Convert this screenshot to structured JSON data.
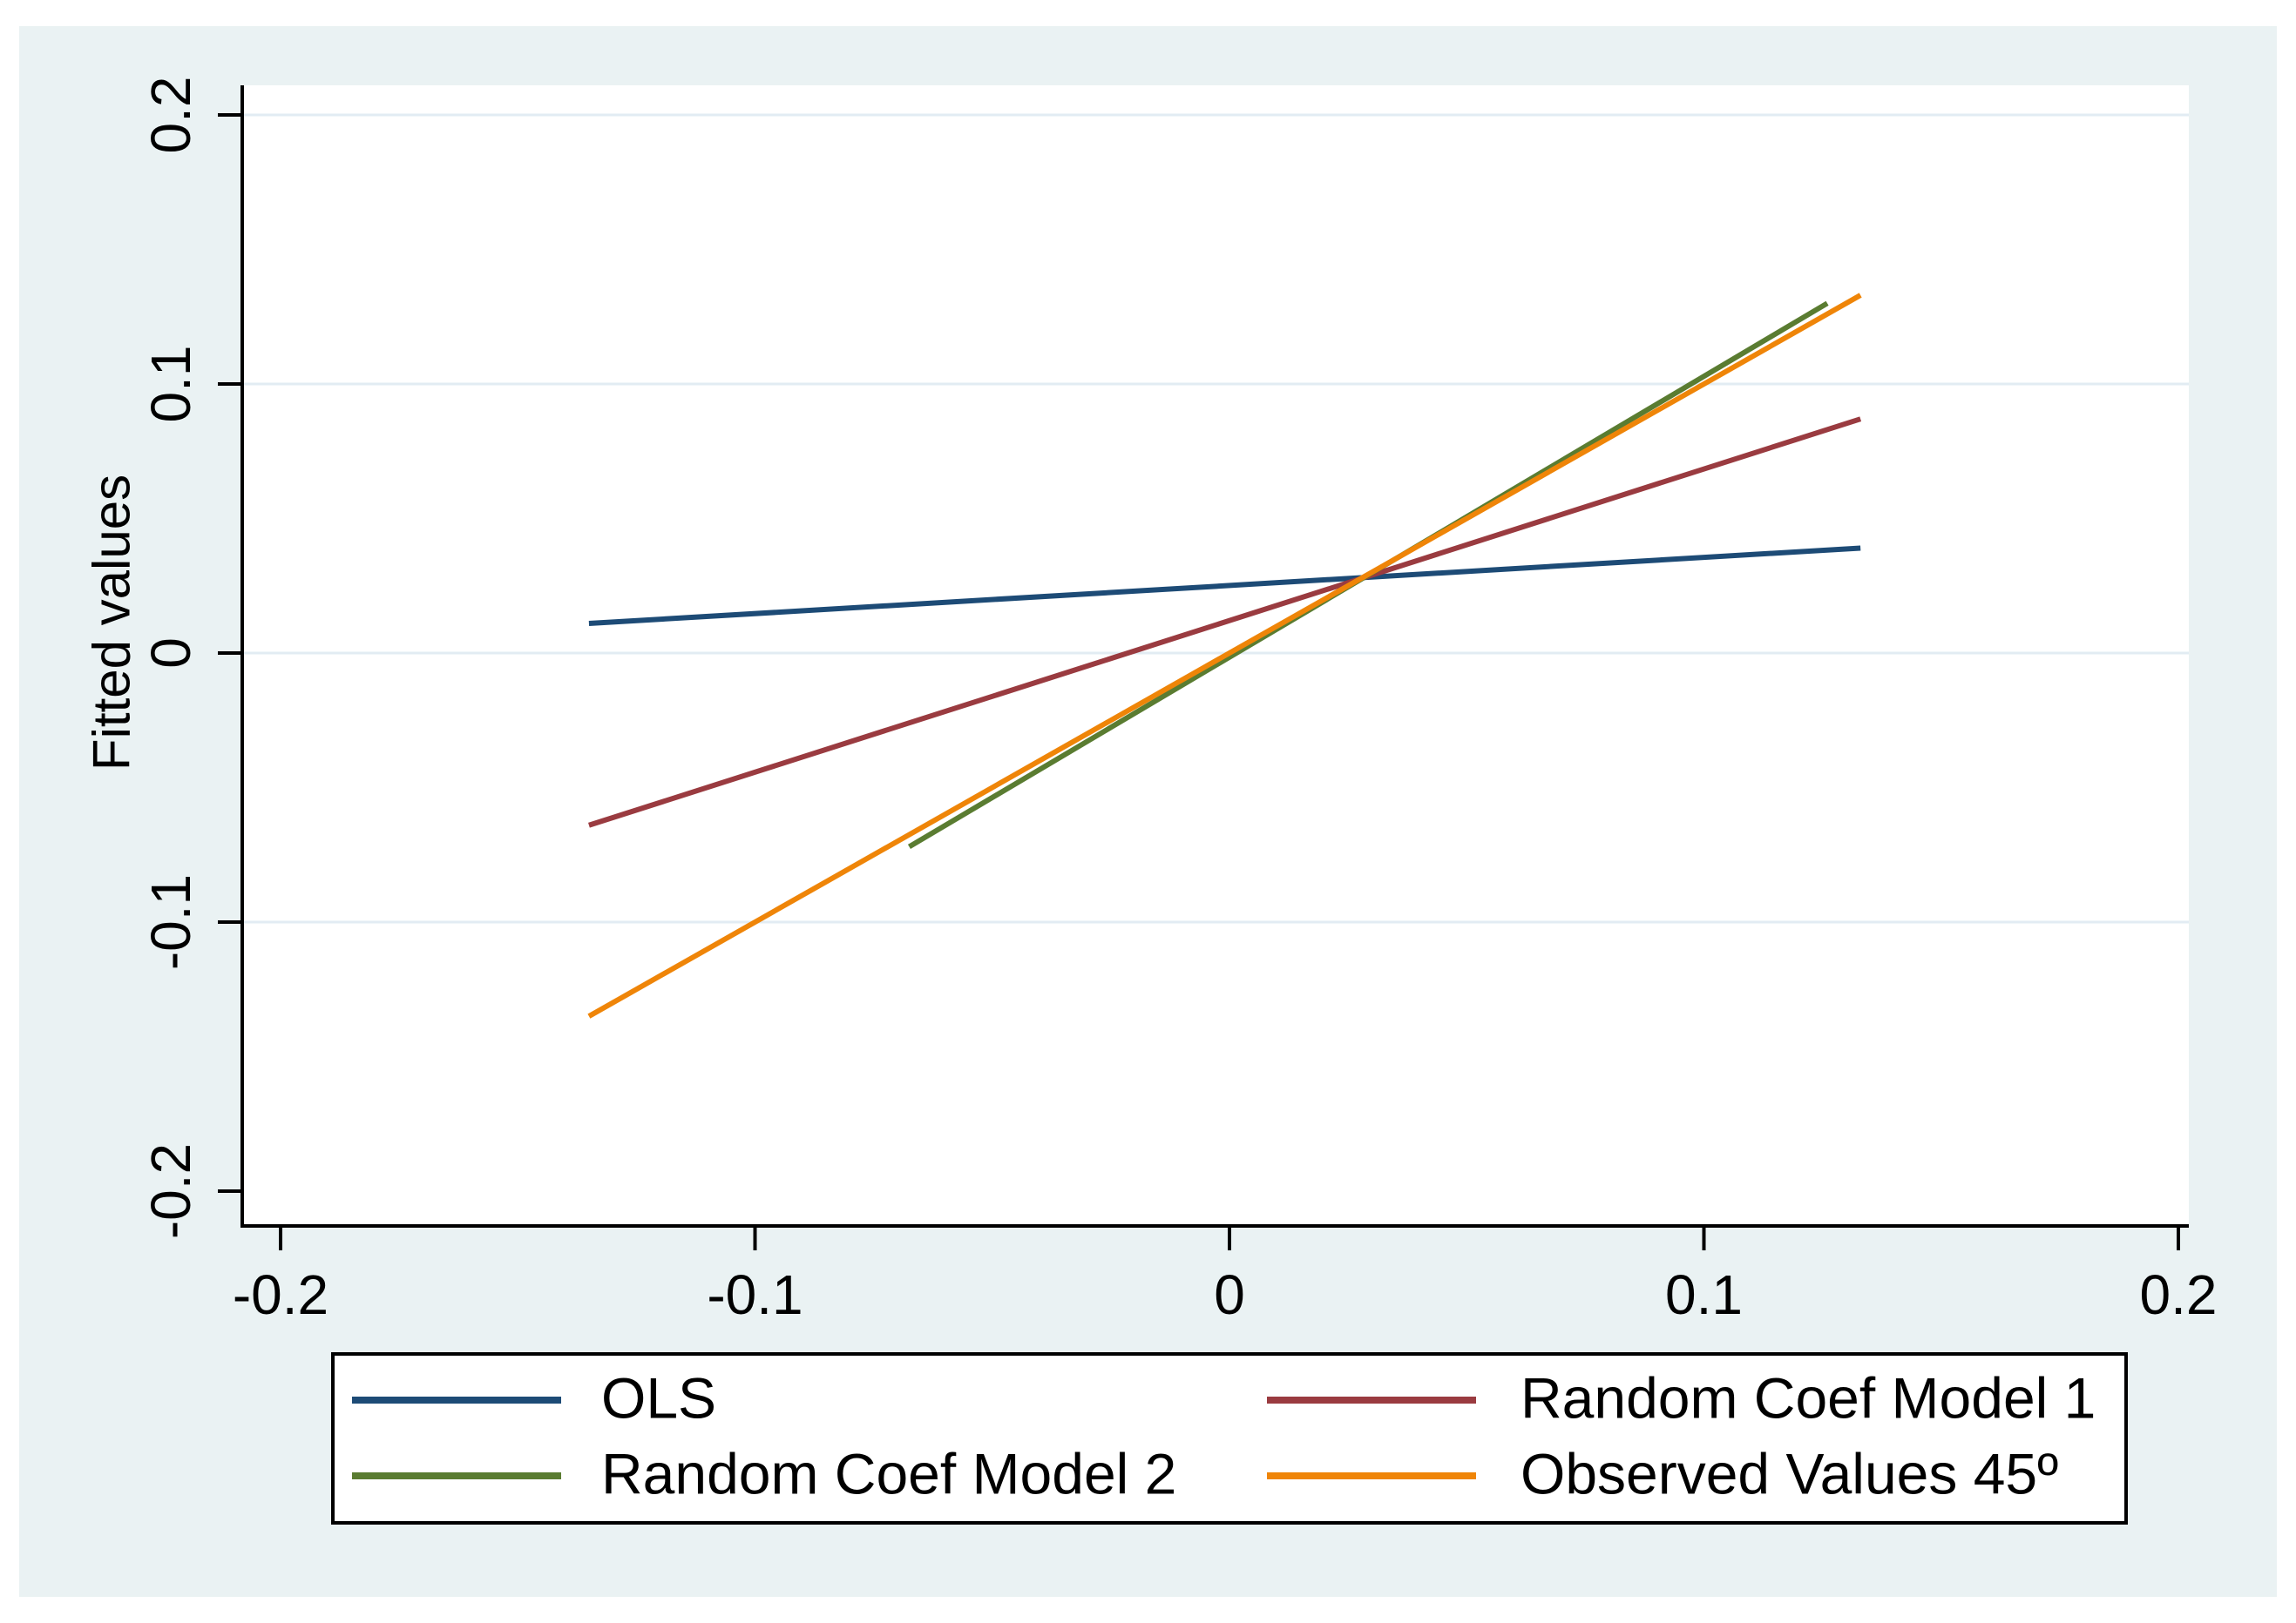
{
  "figure": {
    "page_background": "#ffffff",
    "panel_background": "#eaf2f3",
    "plot_background": "#ffffff",
    "gridline_color": "#e2ecf3",
    "axis_color": "#000000"
  },
  "chart_data": {
    "type": "line",
    "title": "",
    "xlabel": "",
    "ylabel": "Fitted values",
    "xlim": [
      -0.208,
      0.202
    ],
    "ylim": [
      -0.213,
      0.211
    ],
    "grid": "horizontal",
    "x_ticks": [
      {
        "value": -0.2,
        "label": "-0.2"
      },
      {
        "value": -0.1,
        "label": "-0.1"
      },
      {
        "value": 0,
        "label": "0"
      },
      {
        "value": 0.1,
        "label": "0.1"
      },
      {
        "value": 0.2,
        "label": "0.2"
      }
    ],
    "y_ticks": [
      {
        "value": 0.2,
        "label": "0.2",
        "grid": true
      },
      {
        "value": 0.1,
        "label": "0.1",
        "grid": true
      },
      {
        "value": 0,
        "label": "0",
        "grid": true
      },
      {
        "value": -0.1,
        "label": "-0.1",
        "grid": true
      },
      {
        "value": -0.2,
        "label": "-0.2",
        "grid": false
      }
    ],
    "series": [
      {
        "name": "OLS",
        "color": "#1d4b76",
        "points": [
          [
            -0.135,
            0.011
          ],
          [
            0.133,
            0.039
          ]
        ]
      },
      {
        "name": "Random Coef Model 1",
        "color": "#9a3b40",
        "points": [
          [
            -0.135,
            -0.064
          ],
          [
            0.133,
            0.087
          ]
        ]
      },
      {
        "name": "Random Coef Model 2",
        "color": "#5a7c31",
        "points": [
          [
            -0.0675,
            -0.072
          ],
          [
            0.126,
            0.13
          ]
        ]
      },
      {
        "name": "Observed Values 45º",
        "color": "#ef8508",
        "points": [
          [
            -0.135,
            -0.135
          ],
          [
            0.133,
            0.133
          ]
        ]
      }
    ],
    "legend": {
      "position": "bottom",
      "items": [
        "OLS",
        "Random Coef Model 1",
        "Random Coef Model 2",
        "Observed Values 45º"
      ]
    }
  }
}
